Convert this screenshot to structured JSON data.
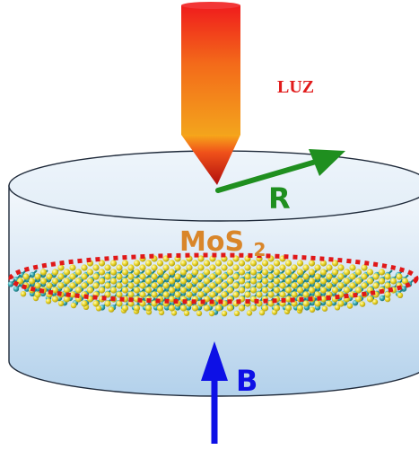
{
  "labels": {
    "light": "LUZ",
    "radius": "R",
    "field": "B",
    "material_base": "MoS",
    "material_subscript": "2"
  },
  "colors": {
    "light_text": "#e11b1b",
    "radius_arrow": "#1f8f1f",
    "field_arrow": "#0d10e6",
    "material_text": "#d9862a",
    "edge_dash": "#e01818",
    "sulfur_atom": "#e8d61a",
    "molybdenum_atom": "#2aa3ad",
    "cylinder_fill_top": "#eef5fb",
    "cylinder_fill_bottom": "#b4d2ec"
  },
  "icons": {
    "light_beam": "laser-beam-cone",
    "lattice": "mos2-monolayer-lattice",
    "radius_arrow": "arrow-up-right",
    "field_arrow": "arrow-up"
  }
}
